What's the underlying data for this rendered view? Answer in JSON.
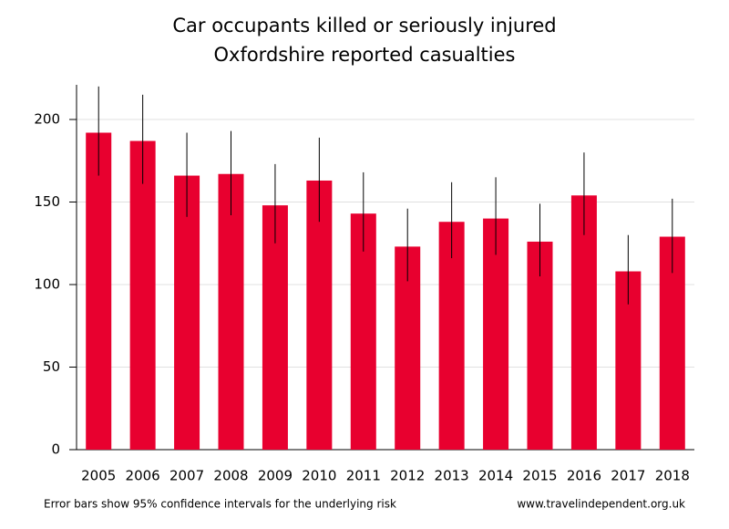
{
  "chart_data": {
    "type": "bar",
    "title": "Car occupants killed or seriously injured",
    "subtitle": "Oxfordshire reported casualties",
    "categories": [
      "2005",
      "2006",
      "2007",
      "2008",
      "2009",
      "2010",
      "2011",
      "2012",
      "2013",
      "2014",
      "2015",
      "2016",
      "2017",
      "2018"
    ],
    "values": [
      192,
      187,
      166,
      167,
      148,
      163,
      143,
      123,
      138,
      140,
      126,
      154,
      108,
      129
    ],
    "error_low": [
      166,
      161,
      141,
      142,
      125,
      138,
      120,
      102,
      116,
      118,
      105,
      130,
      88,
      107
    ],
    "error_high": [
      220,
      215,
      192,
      193,
      173,
      189,
      168,
      146,
      162,
      165,
      149,
      180,
      130,
      152
    ],
    "color": "#e8002f",
    "ylim": [
      0,
      221
    ],
    "yticks": [
      0,
      50,
      100,
      150,
      200
    ],
    "grid": true,
    "note": "Error bars show 95% confidence intervals for the underlying risk",
    "source": "www.travelindependent.org.uk"
  }
}
